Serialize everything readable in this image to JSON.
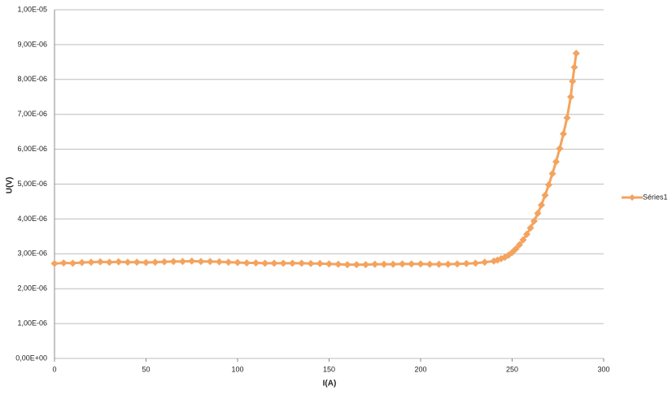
{
  "chart_data": {
    "type": "line",
    "x_label": "I(A)",
    "y_label": "U(V)",
    "x": [
      0,
      5,
      10,
      15,
      20,
      25,
      30,
      35,
      40,
      45,
      50,
      55,
      60,
      65,
      70,
      75,
      80,
      85,
      90,
      95,
      100,
      105,
      110,
      115,
      120,
      125,
      130,
      135,
      140,
      145,
      150,
      155,
      160,
      165,
      170,
      175,
      180,
      185,
      190,
      195,
      200,
      205,
      210,
      215,
      220,
      225,
      230,
      235,
      240,
      242,
      244,
      246,
      248,
      250,
      252,
      254,
      256,
      258,
      260,
      262,
      264,
      266,
      268,
      270,
      272,
      274,
      276,
      278,
      280,
      282,
      283,
      284,
      285
    ],
    "series": [
      {
        "name": "Séries1",
        "color": "#f4a35e",
        "values": [
          2.72e-06,
          2.74e-06,
          2.73e-06,
          2.75e-06,
          2.76e-06,
          2.77e-06,
          2.76e-06,
          2.77e-06,
          2.76e-06,
          2.76e-06,
          2.75e-06,
          2.76e-06,
          2.77e-06,
          2.78e-06,
          2.78e-06,
          2.79e-06,
          2.78e-06,
          2.78e-06,
          2.77e-06,
          2.76e-06,
          2.75e-06,
          2.74e-06,
          2.74e-06,
          2.73e-06,
          2.73e-06,
          2.73e-06,
          2.73e-06,
          2.73e-06,
          2.72e-06,
          2.72e-06,
          2.71e-06,
          2.7e-06,
          2.69e-06,
          2.69e-06,
          2.69e-06,
          2.7e-06,
          2.7e-06,
          2.7e-06,
          2.71e-06,
          2.71e-06,
          2.71e-06,
          2.7e-06,
          2.7e-06,
          2.7e-06,
          2.71e-06,
          2.72e-06,
          2.73e-06,
          2.76e-06,
          2.79e-06,
          2.82e-06,
          2.86e-06,
          2.9e-06,
          2.96e-06,
          3.04e-06,
          3.14e-06,
          3.26e-06,
          3.4e-06,
          3.56e-06,
          3.74e-06,
          3.94e-06,
          4.16e-06,
          4.4e-06,
          4.68e-06,
          4.98e-06,
          5.3e-06,
          5.64e-06,
          6.02e-06,
          6.44e-06,
          6.9e-06,
          7.5e-06,
          7.95e-06,
          8.35e-06,
          8.75e-06
        ]
      }
    ],
    "xlim": [
      0,
      300
    ],
    "xticks": [
      0,
      50,
      100,
      150,
      200,
      250,
      300
    ],
    "ylim": [
      0,
      1e-05
    ],
    "yticks": [
      {
        "value": 0,
        "label": "0,00E+00"
      },
      {
        "value": 1e-06,
        "label": "1,00E-06"
      },
      {
        "value": 2e-06,
        "label": "2,00E-06"
      },
      {
        "value": 3e-06,
        "label": "3,00E-06"
      },
      {
        "value": 4e-06,
        "label": "4,00E-06"
      },
      {
        "value": 5e-06,
        "label": "5,00E-06"
      },
      {
        "value": 6e-06,
        "label": "6,00E-06"
      },
      {
        "value": 7e-06,
        "label": "7,00E-06"
      },
      {
        "value": 8e-06,
        "label": "8,00E-06"
      },
      {
        "value": 9e-06,
        "label": "9,00E-06"
      },
      {
        "value": 1e-05,
        "label": "1,00E-05"
      }
    ],
    "grid": true,
    "legend": "right"
  }
}
